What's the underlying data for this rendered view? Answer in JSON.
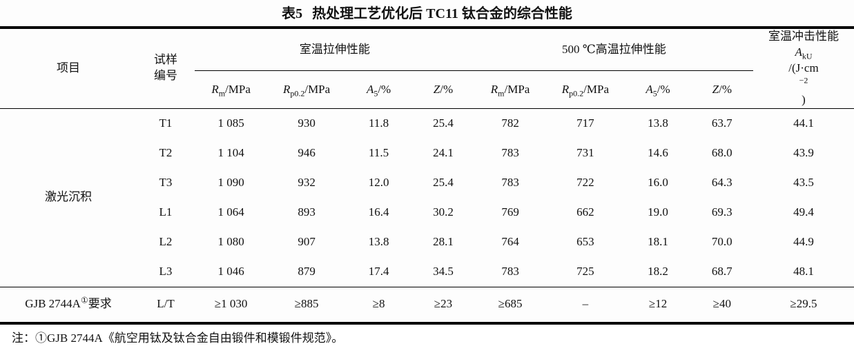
{
  "title": {
    "label": "表5",
    "text": "热处理工艺优化后 TC11 钛合金的综合性能"
  },
  "header": {
    "item": "项目",
    "sample_line1": "试样",
    "sample_line2": "编号",
    "group_rt": "室温拉伸性能",
    "group_ht": "500 ℃高温拉伸性能",
    "impact_line1": "室温冲击性能",
    "impact_sym": "A",
    "impact_sub": "kU",
    "impact_unit_pre": "/(J·cm",
    "impact_exp": "−2",
    "impact_unit_post": ")",
    "sub": [
      {
        "sym": "R",
        "sub": "m",
        "unit": "/MPa"
      },
      {
        "sym": "R",
        "sub": "p0.2",
        "unit": "/MPa"
      },
      {
        "sym": "A",
        "sub": "5",
        "unit": "/%"
      },
      {
        "sym": "Z",
        "sub": "",
        "unit": "/%"
      },
      {
        "sym": "R",
        "sub": "m",
        "unit": "/MPa"
      },
      {
        "sym": "R",
        "sub": "p0.2",
        "unit": "/MPa"
      },
      {
        "sym": "A",
        "sub": "5",
        "unit": "/%"
      },
      {
        "sym": "Z",
        "sub": "",
        "unit": "/%"
      }
    ]
  },
  "body": {
    "group_label": "激光沉积",
    "rows": [
      {
        "sample": "T1",
        "values": [
          "1 085",
          "930",
          "11.8",
          "25.4",
          "782",
          "717",
          "13.8",
          "63.7",
          "44.1"
        ]
      },
      {
        "sample": "T2",
        "values": [
          "1 104",
          "946",
          "11.5",
          "24.1",
          "783",
          "731",
          "14.6",
          "68.0",
          "43.9"
        ]
      },
      {
        "sample": "T3",
        "values": [
          "1 090",
          "932",
          "12.0",
          "25.4",
          "783",
          "722",
          "16.0",
          "64.3",
          "43.5"
        ]
      },
      {
        "sample": "L1",
        "values": [
          "1 064",
          "893",
          "16.4",
          "30.2",
          "769",
          "662",
          "19.0",
          "69.3",
          "49.4"
        ]
      },
      {
        "sample": "L2",
        "values": [
          "1 080",
          "907",
          "13.8",
          "28.1",
          "764",
          "653",
          "18.1",
          "70.0",
          "44.9"
        ]
      },
      {
        "sample": "L3",
        "values": [
          "1 046",
          "879",
          "17.4",
          "34.5",
          "783",
          "725",
          "18.2",
          "68.7",
          "48.1"
        ]
      }
    ],
    "requirement_row": {
      "label_parts": [
        {
          "t": "GJB 2744A"
        },
        {
          "t": "①",
          "tag": "sup"
        },
        {
          "t": "要求"
        }
      ],
      "sample": "L/T",
      "values": [
        "≥1 030",
        "≥885",
        "≥8",
        "≥23",
        "≥685",
        "–",
        "≥12",
        "≥40",
        "≥29.5"
      ]
    }
  },
  "note": "注：①GJB 2744A《航空用钛及钛合金自由锻件和模锻件规范》。"
}
